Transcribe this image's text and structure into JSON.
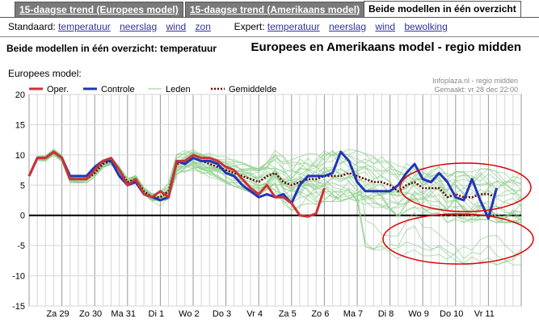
{
  "tabs": [
    {
      "label": "15-daagse trend (Europees model)",
      "active": false
    },
    {
      "label": "15-daagse trend (Amerikaans model)",
      "active": false
    },
    {
      "label": "Beide modellen in één overzicht",
      "active": true
    }
  ],
  "nav": {
    "standard_label": "Standaard:",
    "standard_links": [
      "temperatuur",
      "neerslag",
      "wind",
      "zon"
    ],
    "expert_label": "Expert:",
    "expert_links": [
      "temperatuur",
      "neerslag",
      "wind",
      "bewolking"
    ]
  },
  "subtitle": "Beide modellen in één overzicht: temperatuur",
  "region_title": "Europees en Amerikaans model - regio midden",
  "model_label": "Europees model:",
  "credit": {
    "line1": "Infoplaza.nl - regio midden",
    "line2": "Gemaakt: vr 28 dec 22:00"
  },
  "colors": {
    "oper": "#cc3333",
    "controle": "#2233bb",
    "leden": "#8fd08f",
    "gemiddelde": "#660000",
    "ellipse": "#dd0000"
  },
  "chart_data": {
    "type": "line",
    "ylim": [
      -15,
      20
    ],
    "yticks": [
      20,
      15,
      10,
      5,
      0,
      -5,
      -10,
      -15
    ],
    "x_count": 61,
    "day_labels": [
      "Za 29",
      "Zo 30",
      "Ma 31",
      "Di 1",
      "Wo 2",
      "Do 3",
      "Vr 4",
      "Za 5",
      "Zo 6",
      "Ma 7",
      "Di 8",
      "Wo 9",
      "Do 10",
      "Vr 11"
    ],
    "legend": [
      "Oper.",
      "Controle",
      "Leden",
      "Gemiddelde"
    ],
    "series": [
      {
        "name": "Oper.",
        "values": [
          6.5,
          9.5,
          9.5,
          10.5,
          9.5,
          6,
          6,
          6,
          7.5,
          9,
          9.5,
          7.5,
          5,
          6,
          3.5,
          3,
          4,
          3,
          9,
          9,
          10,
          9.5,
          9.5,
          9,
          8,
          7.5,
          6,
          4.5,
          3.5,
          5,
          3,
          3,
          2,
          0,
          -0.2,
          0.3,
          4.5
        ]
      },
      {
        "name": "Controle",
        "values": [
          6.5,
          9.5,
          9.5,
          10.5,
          9.5,
          6.5,
          6.5,
          6.5,
          8,
          9,
          9,
          6.5,
          5,
          5.5,
          3.5,
          3,
          2.5,
          3,
          9,
          8.5,
          9.5,
          9,
          9,
          8.5,
          7,
          6.5,
          5,
          4,
          3,
          3.5,
          3,
          3.5,
          2,
          5,
          6.5,
          6.5,
          6.5,
          7,
          10.5,
          9,
          5.5,
          4,
          4,
          4,
          4,
          5,
          7,
          8.5,
          6,
          5.5,
          7,
          5.5,
          3,
          2.5,
          6,
          2.5,
          -0.5,
          4.5
        ]
      },
      {
        "name": "Gemiddelde",
        "values": [
          6.5,
          9.5,
          9.5,
          10.5,
          9.5,
          6,
          6,
          6,
          7,
          8.5,
          9,
          7.5,
          5.5,
          6,
          4,
          3,
          3,
          4,
          8.5,
          9,
          9.5,
          9,
          8.5,
          8,
          7.5,
          7,
          6.5,
          6,
          5.5,
          6.5,
          7,
          5.5,
          5,
          5.5,
          6,
          6,
          6.5,
          6.5,
          6.5,
          7,
          6.5,
          6,
          5.5,
          5.5,
          5,
          4,
          5,
          5.5,
          4.5,
          4.5,
          4.5,
          3,
          3.5,
          3,
          3,
          3.5,
          3.5,
          3
        ]
      }
    ]
  }
}
